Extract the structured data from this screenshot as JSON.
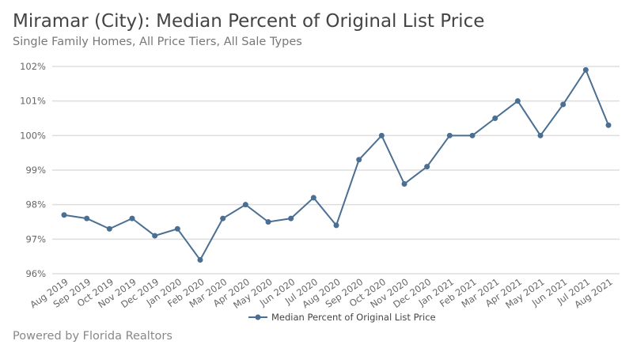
{
  "title": "Miramar (City): Median Percent of Original List Price",
  "subtitle": "Single Family Homes, All Price Tiers, All Sale Types",
  "footer": "Powered by Florida Realtors",
  "chart_data": {
    "type": "line",
    "title": "Miramar (City): Median Percent of Original List Price",
    "subtitle": "Single Family Homes, All Price Tiers, All Sale Types",
    "categories": [
      "Aug 2019",
      "Sep 2019",
      "Oct 2019",
      "Nov 2019",
      "Dec 2019",
      "Jan 2020",
      "Feb 2020",
      "Mar 2020",
      "Apr 2020",
      "May 2020",
      "Jun 2020",
      "Jul 2020",
      "Aug 2020",
      "Sep 2020",
      "Oct 2020",
      "Nov 2020",
      "Dec 2020",
      "Jan 2021",
      "Feb 2021",
      "Mar 2021",
      "Apr 2021",
      "May 2021",
      "Jun 2021",
      "Jul 2021",
      "Aug 2021"
    ],
    "series": [
      {
        "name": "Median Percent of Original List Price",
        "values": [
          97.7,
          97.6,
          97.3,
          97.6,
          97.1,
          97.3,
          96.4,
          97.6,
          98.0,
          97.5,
          97.6,
          98.2,
          97.4,
          99.3,
          100.0,
          98.6,
          99.1,
          100.0,
          100.0,
          100.5,
          101.0,
          100.0,
          100.9,
          101.9,
          100.3
        ],
        "color": "#4a6f93"
      }
    ],
    "ylim": [
      96,
      102
    ],
    "yticks": [
      96,
      97,
      98,
      99,
      100,
      101,
      102
    ],
    "ytick_labels": [
      "96%",
      "97%",
      "98%",
      "99%",
      "100%",
      "101%",
      "102%"
    ],
    "grid": true,
    "legend": "bottom-center",
    "xlabel": "",
    "ylabel": ""
  }
}
